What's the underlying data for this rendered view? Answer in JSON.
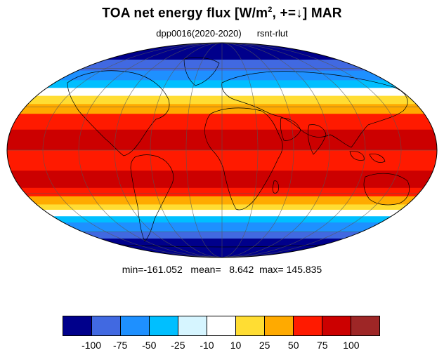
{
  "header": {
    "title_main": "TOA net energy flux  [W/m",
    "title_sup": "2",
    "title_tail": ", +=↓] MAR",
    "subtitle_left": "dpp0016(2020-2020)",
    "subtitle_right": "rsnt-rlut"
  },
  "stats": {
    "text": "min=-161.052   mean=   8.642  max= 145.835"
  },
  "colorbar": {
    "colors": [
      "#00008b",
      "#4169e1",
      "#1e90ff",
      "#00bfff",
      "#d6f5ff",
      "#ffffff",
      "#ffdd33",
      "#ffaa00",
      "#ff1a00",
      "#cc0000",
      "#9e2626"
    ],
    "labels": [
      "-100",
      "-75",
      "-50",
      "-25",
      "-10",
      "10",
      "25",
      "50",
      "75",
      "100"
    ]
  },
  "map": {
    "projection": "mollweide",
    "variable": "rsnt-rlut",
    "zones": [
      {
        "lat_from": 90,
        "lat_to": 68,
        "color": "#00008b"
      },
      {
        "lat_from": 68,
        "lat_to": 58,
        "color": "#4169e1"
      },
      {
        "lat_from": 58,
        "lat_to": 50,
        "color": "#1e90ff"
      },
      {
        "lat_from": 50,
        "lat_to": 44,
        "color": "#00bfff"
      },
      {
        "lat_from": 44,
        "lat_to": 38,
        "color": "#ffffff"
      },
      {
        "lat_from": 38,
        "lat_to": 32,
        "color": "#ffdd33"
      },
      {
        "lat_from": 32,
        "lat_to": 25,
        "color": "#ffaa00"
      },
      {
        "lat_from": 25,
        "lat_to": 14,
        "color": "#ff1a00"
      },
      {
        "lat_from": 14,
        "lat_to": 0,
        "color": "#cc0000"
      },
      {
        "lat_from": 0,
        "lat_to": -14,
        "color": "#ff1a00"
      },
      {
        "lat_from": -14,
        "lat_to": -26,
        "color": "#cc0000"
      },
      {
        "lat_from": -26,
        "lat_to": -32,
        "color": "#ff1a00"
      },
      {
        "lat_from": -32,
        "lat_to": -38,
        "color": "#ffaa00"
      },
      {
        "lat_from": -38,
        "lat_to": -42,
        "color": "#ffdd33"
      },
      {
        "lat_from": -42,
        "lat_to": -47,
        "color": "#ffffff"
      },
      {
        "lat_from": -47,
        "lat_to": -52,
        "color": "#00bfff"
      },
      {
        "lat_from": -52,
        "lat_to": -60,
        "color": "#1e90ff"
      },
      {
        "lat_from": -60,
        "lat_to": -66,
        "color": "#4169e1"
      },
      {
        "lat_from": -66,
        "lat_to": -90,
        "color": "#00008b"
      }
    ]
  }
}
